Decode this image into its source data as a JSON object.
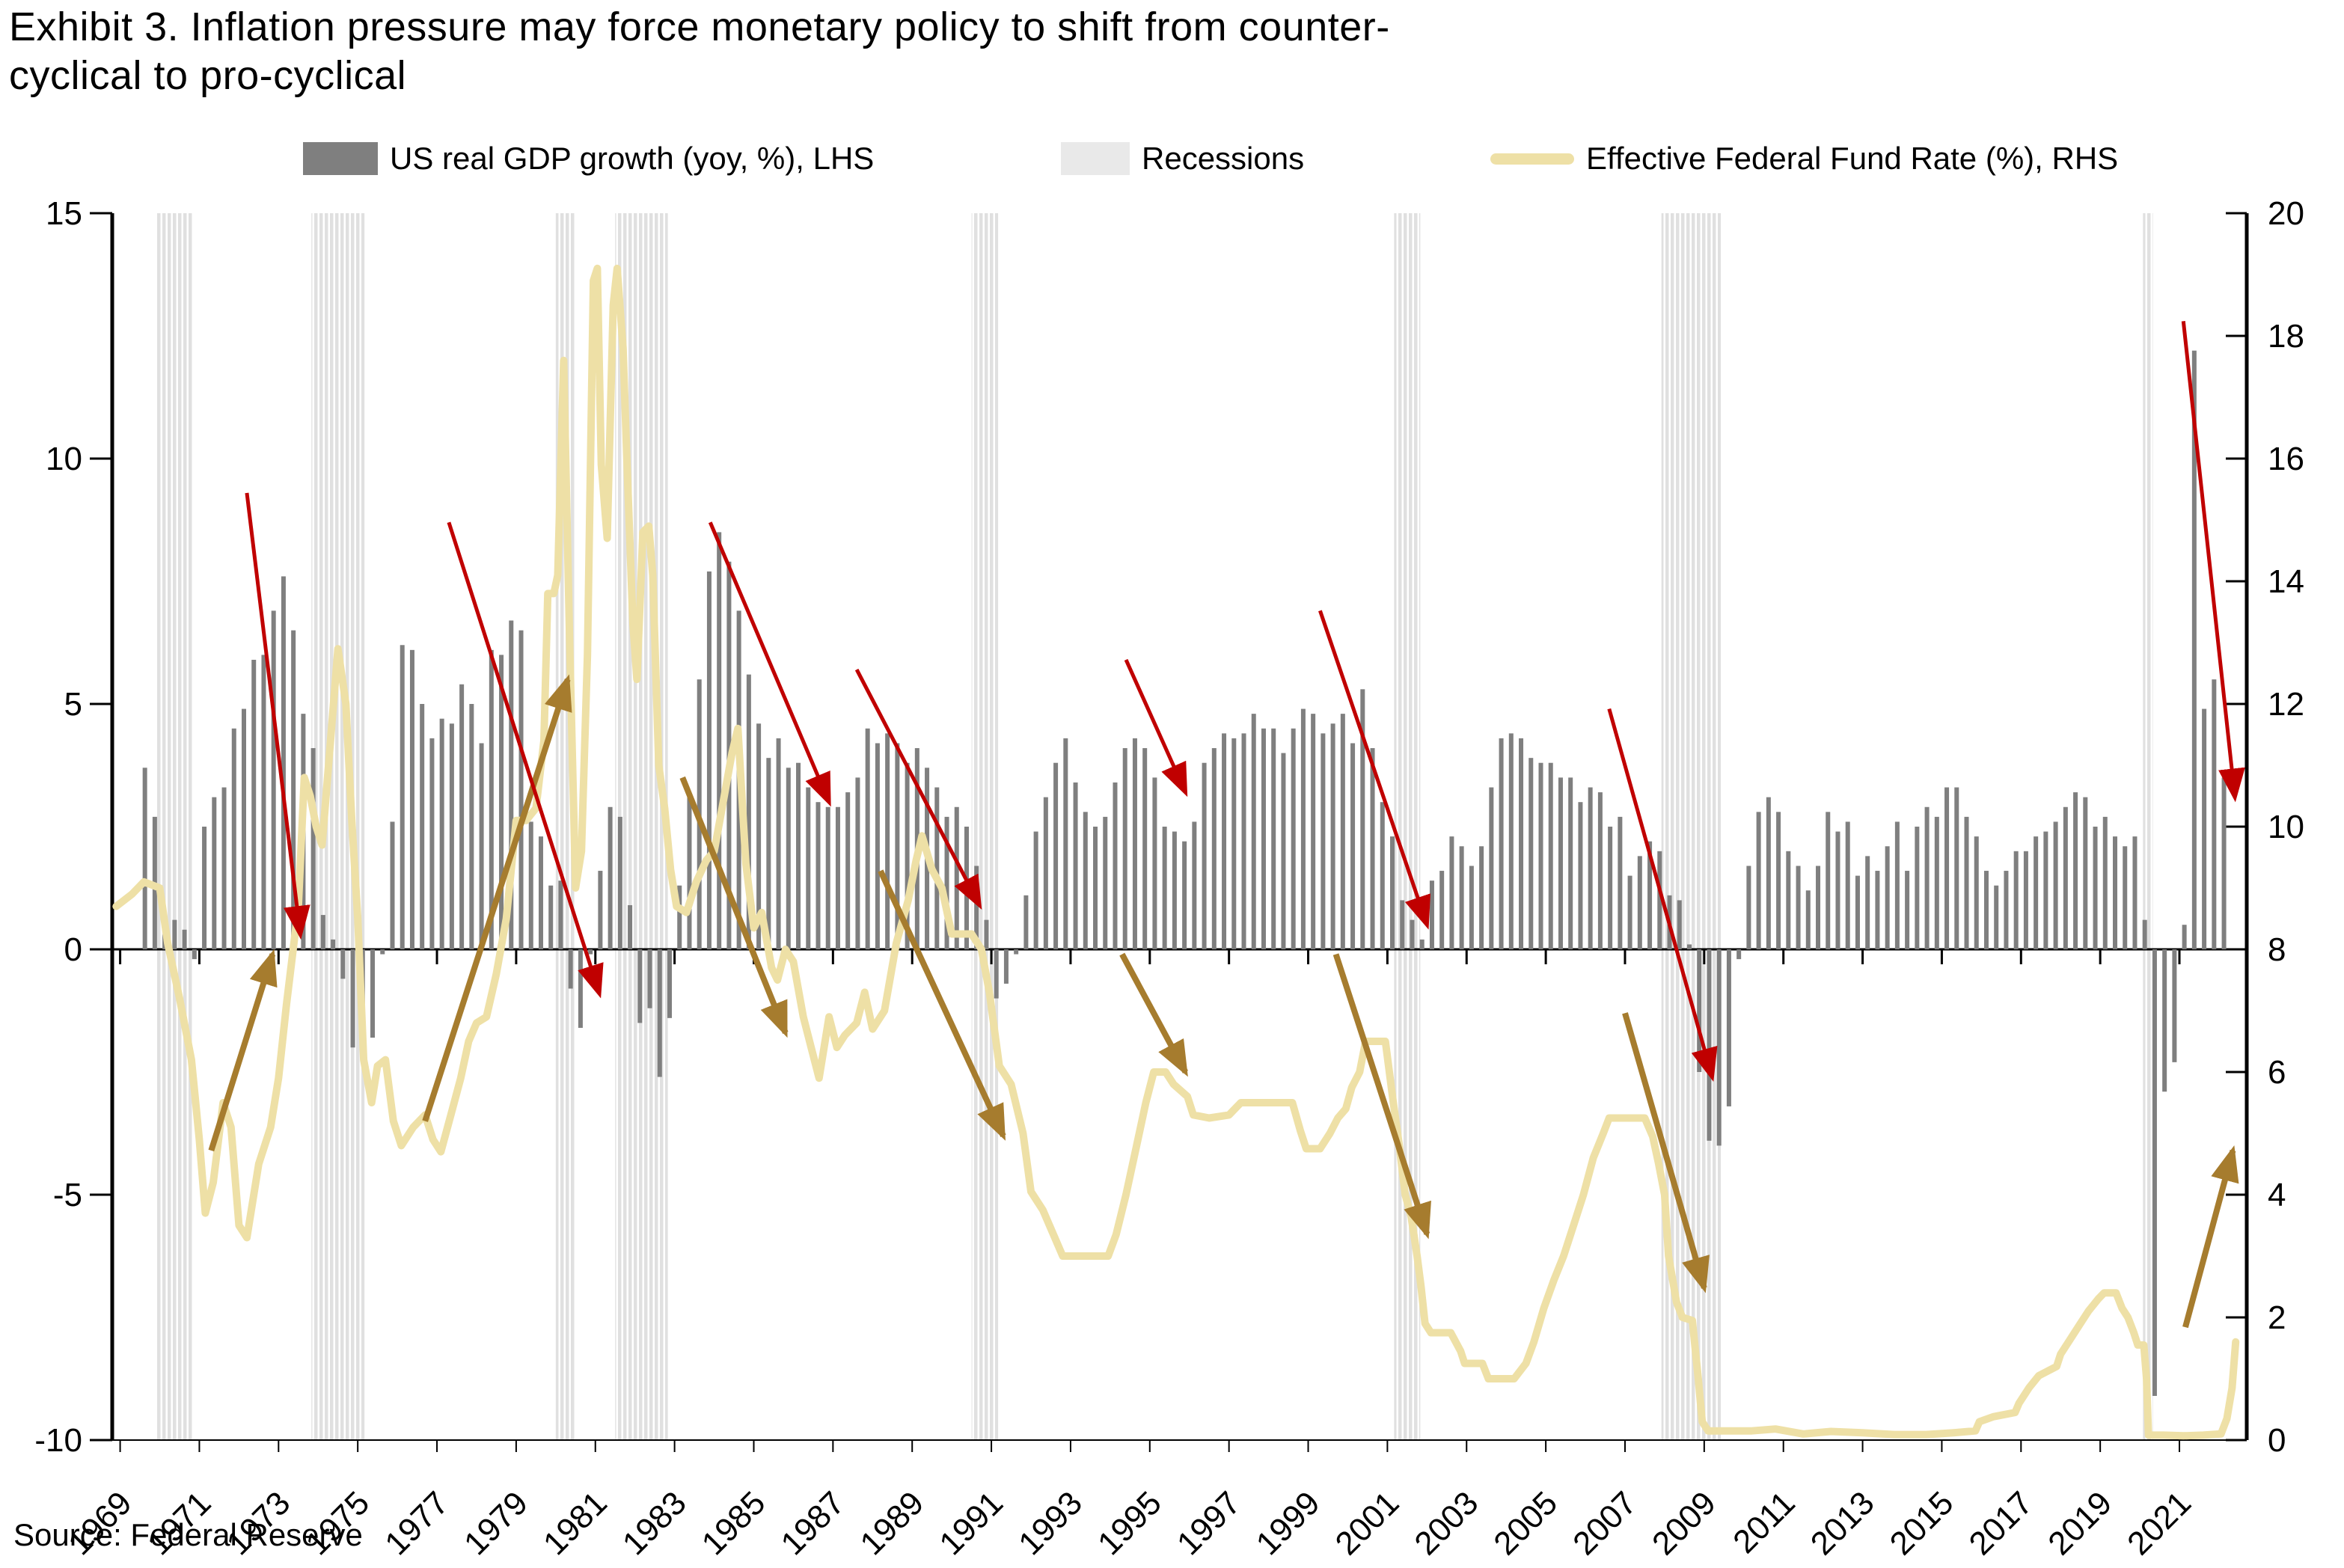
{
  "title": {
    "line1": "Exhibit 3. Inflation pressure may force monetary policy to shift from counter-",
    "line2": "cyclical to pro-cyclical"
  },
  "source": "Source: Federal Reserve",
  "legend": {
    "gdp": "US real GDP growth (yoy, %), LHS",
    "recessions": "Recessions",
    "ffr": "Effective Federal Fund Rate (%), RHS"
  },
  "colors": {
    "bar": "#7f7f7f",
    "recession_stripe": "#e0e0e0",
    "recession_swatch": "#e9e9e9",
    "line": "#eee0a6",
    "red_arrow": "#c00000",
    "brown_arrow": "#a67c2e",
    "axis": "#000000"
  },
  "chart_data": {
    "type": "combo-bar-line",
    "title": "Exhibit 3. Inflation pressure may force monetary policy to shift from counter-cyclical to pro-cyclical",
    "x_axis": {
      "range": [
        1968.8,
        2022.7
      ],
      "tick_years": [
        1969,
        1971,
        1973,
        1975,
        1977,
        1979,
        1981,
        1983,
        1985,
        1987,
        1989,
        1991,
        1993,
        1995,
        1997,
        1999,
        2001,
        2003,
        2005,
        2007,
        2009,
        2011,
        2013,
        2015,
        2017,
        2019,
        2021
      ]
    },
    "y_left": {
      "label": "US real GDP growth (yoy, %), LHS",
      "range": [
        -10,
        15
      ],
      "ticks": [
        15,
        10,
        5,
        0,
        -5,
        -10
      ]
    },
    "y_right": {
      "label": "Effective Federal Fund Rate (%), RHS",
      "range": [
        0,
        20
      ],
      "ticks": [
        20,
        18,
        16,
        14,
        12,
        10,
        8,
        6,
        4,
        2,
        0
      ]
    },
    "recessions": [
      [
        1969.92,
        1970.83
      ],
      [
        1973.83,
        1975.17
      ],
      [
        1980.0,
        1980.5
      ],
      [
        1981.5,
        1982.83
      ],
      [
        1990.5,
        1991.17
      ],
      [
        2001.17,
        2001.83
      ],
      [
        2007.92,
        2009.42
      ],
      [
        2020.08,
        2020.33
      ]
    ],
    "gdp_quarterly": {
      "name": "US real GDP growth (yoy, %)",
      "start": 1969.5,
      "step": 0.25,
      "values": [
        3.7,
        2.7,
        0.3,
        0.6,
        0.4,
        -0.2,
        2.5,
        3.1,
        3.3,
        4.5,
        4.9,
        5.9,
        6.0,
        6.9,
        7.6,
        6.5,
        4.8,
        4.1,
        0.7,
        0.2,
        -0.6,
        -2.0,
        -2.3,
        -1.8,
        -0.1,
        2.6,
        6.2,
        6.1,
        5.0,
        4.3,
        4.7,
        4.6,
        5.4,
        5.0,
        4.2,
        6.1,
        6.0,
        6.7,
        6.5,
        2.6,
        2.3,
        1.3,
        1.4,
        -0.8,
        -1.6,
        -0.1,
        1.6,
        2.9,
        2.7,
        0.9,
        -1.5,
        -1.2,
        -2.6,
        -1.4,
        1.3,
        3.2,
        5.5,
        7.7,
        8.5,
        7.9,
        6.9,
        5.6,
        4.6,
        3.9,
        4.3,
        3.7,
        3.8,
        3.3,
        3.0,
        2.9,
        2.9,
        3.2,
        3.5,
        4.5,
        4.2,
        4.4,
        4.2,
        3.8,
        4.1,
        3.7,
        3.3,
        2.7,
        2.9,
        2.5,
        1.7,
        0.6,
        -1.0,
        -0.7,
        -0.1,
        1.1,
        2.4,
        3.1,
        3.8,
        4.3,
        3.4,
        2.8,
        2.5,
        2.7,
        3.4,
        4.1,
        4.3,
        4.1,
        3.5,
        2.5,
        2.4,
        2.2,
        2.6,
        3.8,
        4.1,
        4.4,
        4.3,
        4.4,
        4.8,
        4.5,
        4.5,
        4.0,
        4.5,
        4.9,
        4.8,
        4.4,
        4.6,
        4.8,
        4.2,
        5.3,
        4.1,
        3.0,
        2.3,
        1.0,
        0.6,
        0.2,
        1.4,
        1.6,
        2.3,
        2.1,
        1.7,
        2.1,
        3.3,
        4.3,
        4.4,
        4.3,
        3.9,
        3.8,
        3.8,
        3.5,
        3.5,
        3.0,
        3.3,
        3.2,
        2.5,
        2.7,
        1.5,
        1.9,
        2.2,
        2.0,
        1.1,
        1.0,
        0.1,
        -2.5,
        -3.9,
        -4.0,
        -3.2,
        -0.2,
        1.7,
        2.8,
        3.1,
        2.8,
        2.0,
        1.7,
        1.2,
        1.7,
        2.8,
        2.4,
        2.6,
        1.5,
        1.9,
        1.6,
        2.1,
        2.6,
        1.6,
        2.5,
        2.9,
        2.7,
        3.3,
        3.3,
        2.7,
        2.3,
        1.6,
        1.3,
        1.6,
        2.0,
        2.0,
        2.3,
        2.4,
        2.6,
        2.9,
        3.2,
        3.1,
        2.5,
        2.7,
        2.3,
        2.1,
        2.3,
        0.6,
        -9.1,
        -2.9,
        -2.3,
        0.5,
        12.2,
        4.9,
        5.5,
        3.5
      ]
    },
    "ffr_line": {
      "name": "Effective Federal Fund Rate (%)",
      "points": [
        [
          1968.9,
          8.7
        ],
        [
          1969.3,
          8.9
        ],
        [
          1969.6,
          9.1
        ],
        [
          1970.0,
          9.0
        ],
        [
          1970.2,
          8.1
        ],
        [
          1970.5,
          7.2
        ],
        [
          1970.8,
          6.2
        ],
        [
          1971.0,
          4.9
        ],
        [
          1971.15,
          3.7
        ],
        [
          1971.35,
          4.2
        ],
        [
          1971.6,
          5.5
        ],
        [
          1971.8,
          5.1
        ],
        [
          1972.0,
          3.5
        ],
        [
          1972.2,
          3.3
        ],
        [
          1972.5,
          4.5
        ],
        [
          1972.8,
          5.1
        ],
        [
          1973.0,
          5.9
        ],
        [
          1973.2,
          7.1
        ],
        [
          1973.5,
          8.7
        ],
        [
          1973.65,
          10.8
        ],
        [
          1973.8,
          10.5
        ],
        [
          1973.95,
          10.0
        ],
        [
          1974.1,
          9.7
        ],
        [
          1974.3,
          11.3
        ],
        [
          1974.5,
          12.9
        ],
        [
          1974.7,
          12.0
        ],
        [
          1974.85,
          10.1
        ],
        [
          1975.0,
          8.5
        ],
        [
          1975.15,
          6.2
        ],
        [
          1975.35,
          5.5
        ],
        [
          1975.5,
          6.1
        ],
        [
          1975.7,
          6.2
        ],
        [
          1975.9,
          5.2
        ],
        [
          1976.1,
          4.8
        ],
        [
          1976.4,
          5.1
        ],
        [
          1976.7,
          5.3
        ],
        [
          1976.9,
          4.9
        ],
        [
          1977.1,
          4.7
        ],
        [
          1977.35,
          5.3
        ],
        [
          1977.6,
          5.9
        ],
        [
          1977.8,
          6.5
        ],
        [
          1978.0,
          6.8
        ],
        [
          1978.25,
          6.9
        ],
        [
          1978.5,
          7.6
        ],
        [
          1978.75,
          8.5
        ],
        [
          1979.0,
          10.1
        ],
        [
          1979.25,
          10.1
        ],
        [
          1979.5,
          10.3
        ],
        [
          1979.7,
          11.4
        ],
        [
          1979.8,
          13.8
        ],
        [
          1979.95,
          13.8
        ],
        [
          1980.05,
          14.1
        ],
        [
          1980.2,
          17.6
        ],
        [
          1980.35,
          13.0
        ],
        [
          1980.5,
          9.0
        ],
        [
          1980.65,
          9.6
        ],
        [
          1980.8,
          12.8
        ],
        [
          1980.95,
          18.9
        ],
        [
          1981.05,
          19.1
        ],
        [
          1981.15,
          15.9
        ],
        [
          1981.3,
          14.7
        ],
        [
          1981.45,
          18.5
        ],
        [
          1981.55,
          19.1
        ],
        [
          1981.7,
          17.8
        ],
        [
          1981.8,
          15.9
        ],
        [
          1981.95,
          13.3
        ],
        [
          1982.05,
          12.4
        ],
        [
          1982.2,
          14.8
        ],
        [
          1982.35,
          14.9
        ],
        [
          1982.45,
          14.1
        ],
        [
          1982.6,
          11.0
        ],
        [
          1982.75,
          10.3
        ],
        [
          1982.9,
          9.3
        ],
        [
          1983.05,
          8.7
        ],
        [
          1983.3,
          8.6
        ],
        [
          1983.55,
          9.1
        ],
        [
          1983.8,
          9.45
        ],
        [
          1984.0,
          9.6
        ],
        [
          1984.2,
          10.3
        ],
        [
          1984.45,
          11.2
        ],
        [
          1984.6,
          11.6
        ],
        [
          1984.8,
          9.4
        ],
        [
          1985.0,
          8.35
        ],
        [
          1985.2,
          8.6
        ],
        [
          1985.45,
          7.7
        ],
        [
          1985.6,
          7.5
        ],
        [
          1985.8,
          8.0
        ],
        [
          1986.0,
          7.8
        ],
        [
          1986.25,
          6.9
        ],
        [
          1986.45,
          6.4
        ],
        [
          1986.65,
          5.9
        ],
        [
          1986.9,
          6.9
        ],
        [
          1987.1,
          6.4
        ],
        [
          1987.3,
          6.6
        ],
        [
          1987.6,
          6.8
        ],
        [
          1987.8,
          7.3
        ],
        [
          1988.0,
          6.7
        ],
        [
          1988.3,
          7.0
        ],
        [
          1988.6,
          8.1
        ],
        [
          1988.9,
          8.8
        ],
        [
          1989.1,
          9.45
        ],
        [
          1989.25,
          9.85
        ],
        [
          1989.5,
          9.3
        ],
        [
          1989.75,
          9.0
        ],
        [
          1990.0,
          8.25
        ],
        [
          1990.5,
          8.25
        ],
        [
          1990.75,
          8.0
        ],
        [
          1990.95,
          7.3
        ],
        [
          1991.2,
          6.1
        ],
        [
          1991.5,
          5.8
        ],
        [
          1991.8,
          5.0
        ],
        [
          1992.0,
          4.05
        ],
        [
          1992.3,
          3.75
        ],
        [
          1992.6,
          3.3
        ],
        [
          1992.8,
          3.0
        ],
        [
          1993.2,
          3.0
        ],
        [
          1993.6,
          3.0
        ],
        [
          1993.95,
          3.0
        ],
        [
          1994.15,
          3.35
        ],
        [
          1994.4,
          4.0
        ],
        [
          1994.65,
          4.75
        ],
        [
          1994.9,
          5.5
        ],
        [
          1995.1,
          6.0
        ],
        [
          1995.4,
          6.0
        ],
        [
          1995.6,
          5.8
        ],
        [
          1995.95,
          5.6
        ],
        [
          1996.1,
          5.3
        ],
        [
          1996.5,
          5.25
        ],
        [
          1997.0,
          5.3
        ],
        [
          1997.3,
          5.5
        ],
        [
          1997.7,
          5.5
        ],
        [
          1998.1,
          5.5
        ],
        [
          1998.6,
          5.5
        ],
        [
          1998.8,
          5.05
        ],
        [
          1998.95,
          4.75
        ],
        [
          1999.3,
          4.75
        ],
        [
          1999.55,
          5.0
        ],
        [
          1999.75,
          5.25
        ],
        [
          1999.95,
          5.4
        ],
        [
          2000.1,
          5.75
        ],
        [
          2000.3,
          6.0
        ],
        [
          2000.45,
          6.5
        ],
        [
          2000.95,
          6.5
        ],
        [
          2001.05,
          6.0
        ],
        [
          2001.15,
          5.5
        ],
        [
          2001.3,
          4.8
        ],
        [
          2001.45,
          4.0
        ],
        [
          2001.6,
          3.65
        ],
        [
          2001.75,
          3.0
        ],
        [
          2001.85,
          2.5
        ],
        [
          2001.95,
          1.9
        ],
        [
          2002.1,
          1.75
        ],
        [
          2002.6,
          1.75
        ],
        [
          2002.85,
          1.45
        ],
        [
          2002.95,
          1.25
        ],
        [
          2003.4,
          1.25
        ],
        [
          2003.55,
          1.0
        ],
        [
          2004.2,
          1.0
        ],
        [
          2004.5,
          1.25
        ],
        [
          2004.7,
          1.6
        ],
        [
          2004.95,
          2.15
        ],
        [
          2005.2,
          2.6
        ],
        [
          2005.45,
          3.0
        ],
        [
          2005.7,
          3.5
        ],
        [
          2005.95,
          4.0
        ],
        [
          2006.2,
          4.6
        ],
        [
          2006.45,
          5.0
        ],
        [
          2006.6,
          5.25
        ],
        [
          2007.0,
          5.25
        ],
        [
          2007.5,
          5.25
        ],
        [
          2007.7,
          4.95
        ],
        [
          2007.85,
          4.5
        ],
        [
          2008.0,
          4.0
        ],
        [
          2008.1,
          3.0
        ],
        [
          2008.3,
          2.25
        ],
        [
          2008.45,
          2.0
        ],
        [
          2008.7,
          1.95
        ],
        [
          2008.85,
          1.0
        ],
        [
          2008.95,
          0.3
        ],
        [
          2009.1,
          0.15
        ],
        [
          2009.6,
          0.15
        ],
        [
          2010.2,
          0.15
        ],
        [
          2010.8,
          0.18
        ],
        [
          2011.5,
          0.1
        ],
        [
          2012.2,
          0.14
        ],
        [
          2013.0,
          0.12
        ],
        [
          2013.8,
          0.09
        ],
        [
          2014.6,
          0.09
        ],
        [
          2015.3,
          0.12
        ],
        [
          2015.85,
          0.15
        ],
        [
          2015.95,
          0.3
        ],
        [
          2016.3,
          0.38
        ],
        [
          2016.85,
          0.45
        ],
        [
          2016.95,
          0.6
        ],
        [
          2017.2,
          0.85
        ],
        [
          2017.45,
          1.05
        ],
        [
          2017.9,
          1.2
        ],
        [
          2018.0,
          1.4
        ],
        [
          2018.2,
          1.6
        ],
        [
          2018.45,
          1.85
        ],
        [
          2018.7,
          2.1
        ],
        [
          2018.95,
          2.3
        ],
        [
          2019.1,
          2.4
        ],
        [
          2019.4,
          2.4
        ],
        [
          2019.55,
          2.15
        ],
        [
          2019.7,
          2.0
        ],
        [
          2019.85,
          1.75
        ],
        [
          2019.95,
          1.55
        ],
        [
          2020.1,
          1.55
        ],
        [
          2020.17,
          1.0
        ],
        [
          2020.22,
          0.08
        ],
        [
          2020.6,
          0.08
        ],
        [
          2021.1,
          0.07
        ],
        [
          2021.6,
          0.08
        ],
        [
          2022.05,
          0.1
        ],
        [
          2022.2,
          0.35
        ],
        [
          2022.33,
          0.85
        ],
        [
          2022.42,
          1.6
        ]
      ]
    },
    "red_arrows_note": "growth slowdown arrows, y in LHS units",
    "red_arrows": [
      [
        1972.2,
        9.3,
        1973.55,
        0.3
      ],
      [
        1977.3,
        8.7,
        1981.1,
        -0.9
      ],
      [
        1983.9,
        8.7,
        1986.9,
        3.0
      ],
      [
        1987.6,
        5.7,
        1990.7,
        0.9
      ],
      [
        1994.4,
        5.9,
        1995.9,
        3.2
      ],
      [
        1999.3,
        6.9,
        2002.0,
        0.5
      ],
      [
        2006.6,
        4.9,
        2009.2,
        -2.6
      ],
      [
        2021.1,
        12.8,
        2022.4,
        3.1
      ]
    ],
    "brown_arrows_note": "fed funds rate path arrows, y in LHS units",
    "brown_arrows": [
      [
        1971.3,
        -4.1,
        1972.85,
        -0.1
      ],
      [
        1976.7,
        -3.5,
        1980.3,
        5.5
      ],
      [
        1983.2,
        3.5,
        1985.8,
        -1.7
      ],
      [
        1988.2,
        1.6,
        1991.3,
        -3.8
      ],
      [
        1994.3,
        -0.1,
        1995.9,
        -2.5
      ],
      [
        1999.7,
        -0.1,
        2002.0,
        -5.8
      ],
      [
        2007.0,
        -1.3,
        2009.0,
        -6.9
      ],
      [
        2021.15,
        -7.7,
        2022.35,
        -4.1
      ]
    ]
  }
}
